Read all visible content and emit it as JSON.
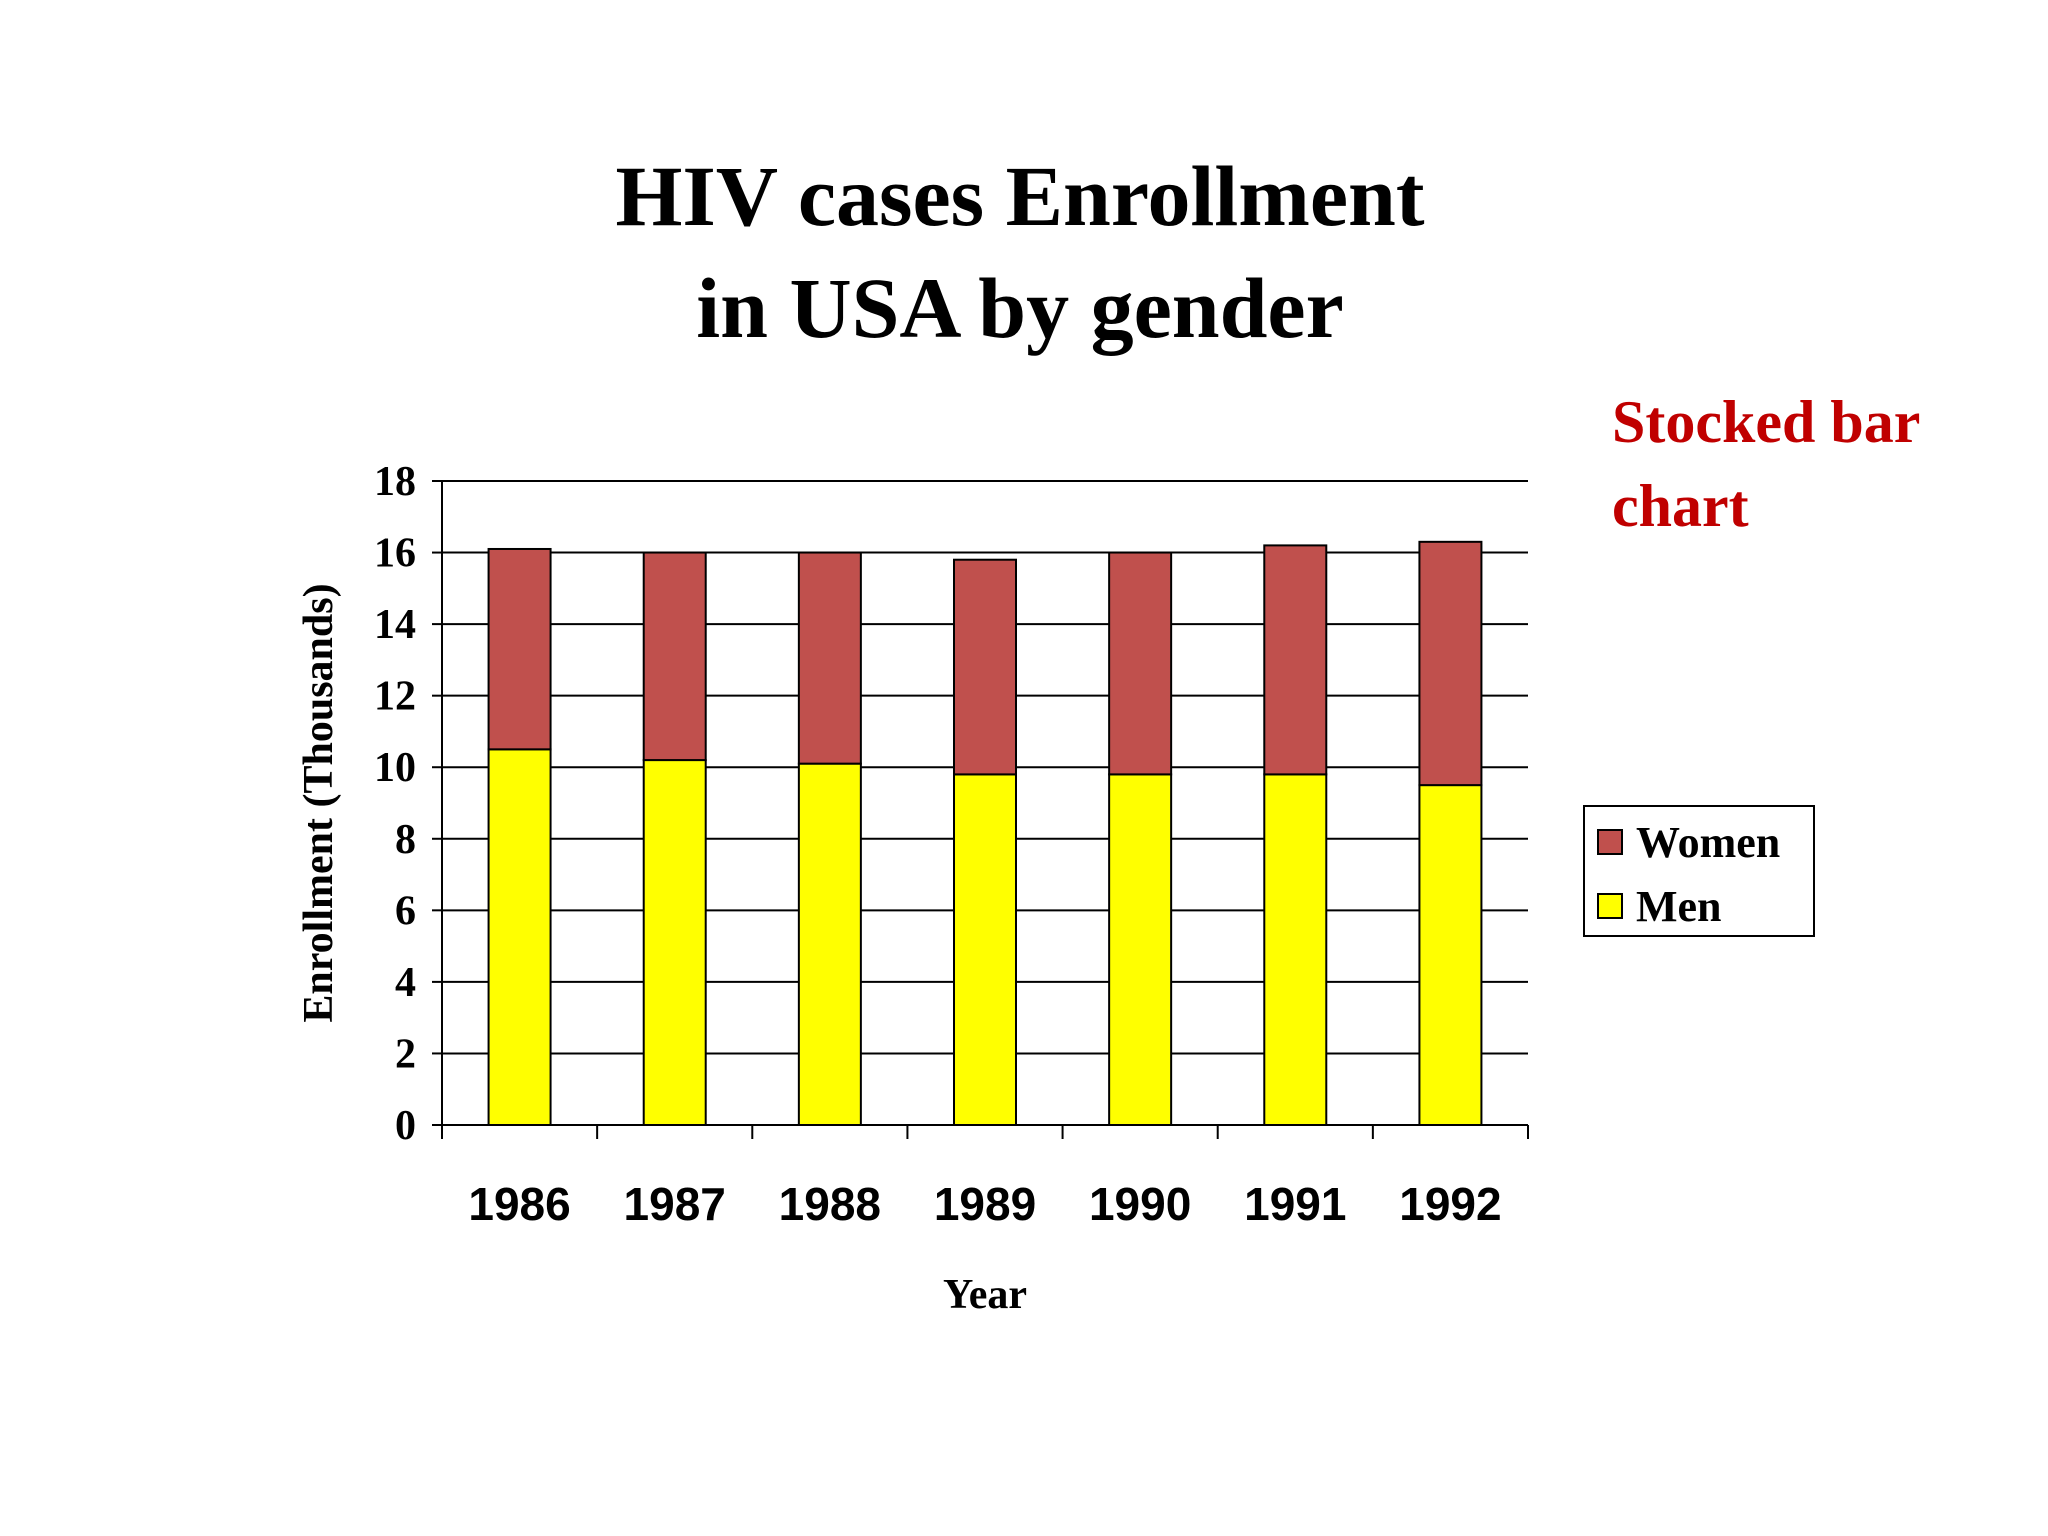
{
  "slide": {
    "title": "HIV cases  Enrollment\nin USA by gender",
    "side_note": "Stocked bar\nchart"
  },
  "chart_data": {
    "type": "bar",
    "stacked": true,
    "categories": [
      "1986",
      "1987",
      "1988",
      "1989",
      "1990",
      "1991",
      "1992"
    ],
    "series": [
      {
        "name": "Men",
        "color": "#ffff00",
        "values": [
          10.5,
          10.2,
          10.1,
          9.8,
          9.8,
          9.8,
          9.5
        ]
      },
      {
        "name": "Women",
        "color": "#c0504d",
        "values": [
          5.6,
          5.8,
          5.9,
          6.0,
          6.2,
          6.4,
          6.8
        ]
      }
    ],
    "xlabel": "Year",
    "ylabel": "Enrollment (Thousands)",
    "ylim": [
      0,
      18
    ],
    "yticks": [
      0,
      2,
      4,
      6,
      8,
      10,
      12,
      14,
      16,
      18
    ],
    "grid": true,
    "legend": {
      "placement": "right",
      "order": [
        "Women",
        "Men"
      ]
    }
  }
}
